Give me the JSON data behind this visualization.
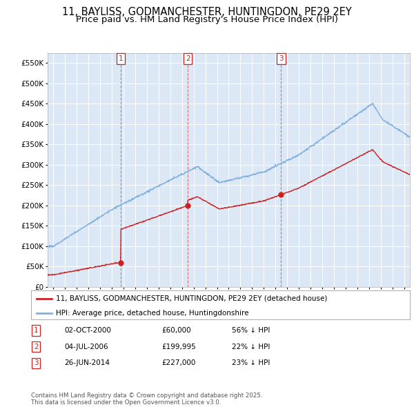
{
  "title": "11, BAYLISS, GODMANCHESTER, HUNTINGDON, PE29 2EY",
  "subtitle": "Price paid vs. HM Land Registry's House Price Index (HPI)",
  "title_fontsize": 10.5,
  "subtitle_fontsize": 9.5,
  "background_color": "#ffffff",
  "plot_bg_color": "#dce8f5",
  "grid_color": "#ffffff",
  "ylim": [
    0,
    575000
  ],
  "yticks": [
    0,
    50000,
    100000,
    150000,
    200000,
    250000,
    300000,
    350000,
    400000,
    450000,
    500000,
    550000
  ],
  "ytick_labels": [
    "£0",
    "£50K",
    "£100K",
    "£150K",
    "£200K",
    "£250K",
    "£300K",
    "£350K",
    "£400K",
    "£450K",
    "£500K",
    "£550K"
  ],
  "hpi_color": "#7fb0e0",
  "price_color": "#cc2222",
  "transactions": [
    {
      "date_num": 2000.75,
      "price": 60000,
      "label": "1"
    },
    {
      "date_num": 2006.5,
      "price": 199995,
      "label": "2"
    },
    {
      "date_num": 2014.48,
      "price": 227000,
      "label": "3"
    }
  ],
  "legend_line1": "11, BAYLISS, GODMANCHESTER, HUNTINGDON, PE29 2EY (detached house)",
  "legend_line2": "HPI: Average price, detached house, Huntingdonshire",
  "table_data": [
    [
      "1",
      "02-OCT-2000",
      "£60,000",
      "56% ↓ HPI"
    ],
    [
      "2",
      "04-JUL-2006",
      "£199,995",
      "22% ↓ HPI"
    ],
    [
      "3",
      "26-JUN-2014",
      "£227,000",
      "23% ↓ HPI"
    ]
  ],
  "footnote": "Contains HM Land Registry data © Crown copyright and database right 2025.\nThis data is licensed under the Open Government Licence v3.0.",
  "xmin": 1994.5,
  "xmax": 2025.5
}
